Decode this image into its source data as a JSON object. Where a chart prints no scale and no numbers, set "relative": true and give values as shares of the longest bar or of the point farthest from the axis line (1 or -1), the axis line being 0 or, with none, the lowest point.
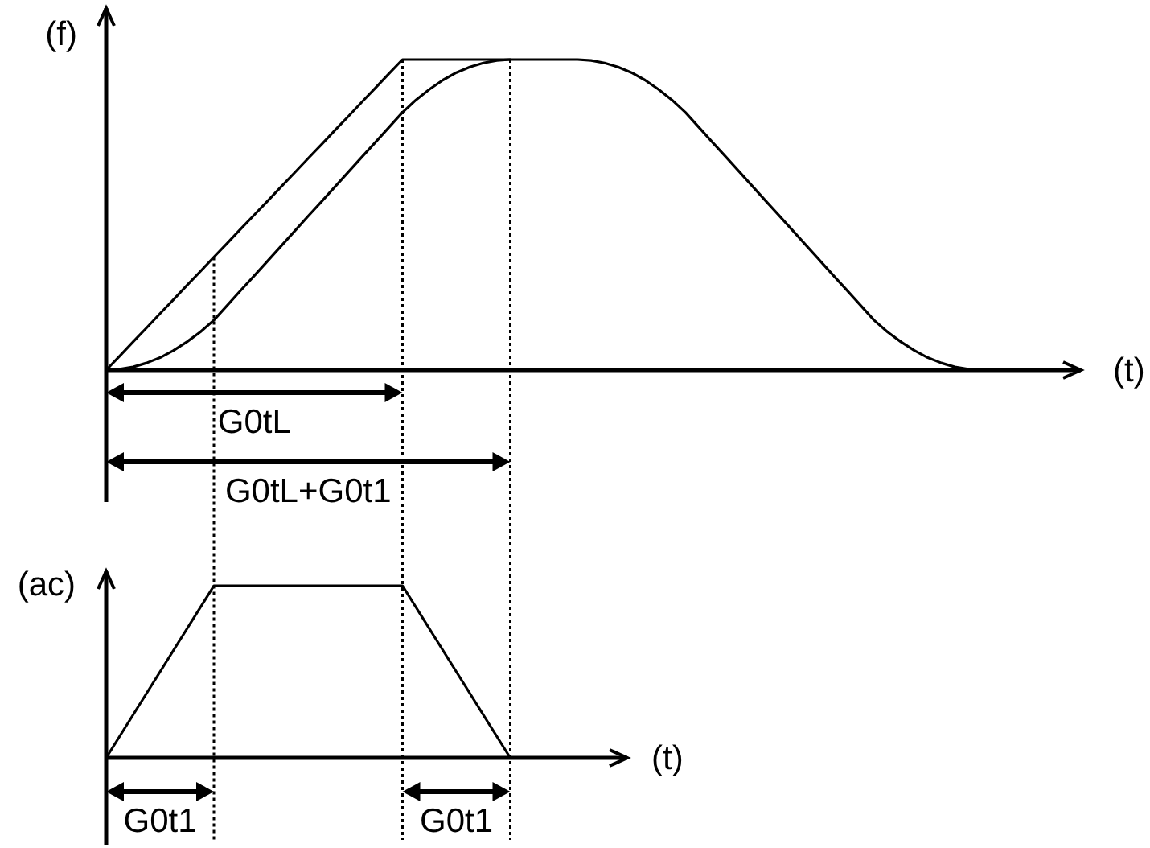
{
  "chart_data": [
    {
      "type": "line",
      "relative": true,
      "grid": "x",
      "ylabel": "(f)",
      "xlabel": "(t)",
      "annotations": [
        "G0tL",
        "G0tL+G0t1"
      ],
      "categories": [
        null,
        null,
        null,
        null,
        null,
        null,
        null,
        null,
        null,
        null,
        null,
        null,
        null,
        null,
        null,
        null,
        null,
        null,
        null,
        null,
        null,
        null,
        null,
        null,
        null,
        null,
        null,
        null,
        null,
        null,
        null,
        null,
        null,
        null,
        null,
        null,
        null,
        null,
        null,
        null,
        null,
        null,
        null,
        null,
        null,
        null,
        null,
        null,
        null,
        null,
        null,
        null,
        null,
        null,
        null,
        null,
        null,
        null,
        null,
        null,
        null,
        null,
        null,
        null,
        null,
        null
      ],
      "series": [
        {
          "color": "#000000",
          "values": [
            0,
            0.045,
            0.091,
            0.136,
            0.182,
            0.227,
            0.273,
            0.318,
            0.364,
            0.409,
            0.455,
            0.5,
            0.545,
            0.591,
            0.636,
            0.682,
            0.727,
            0.773,
            0.818,
            0.864,
            0.909,
            0.955,
            1,
            1,
            1,
            1,
            1,
            1,
            1,
            1,
            1,
            null,
            null,
            null,
            null,
            null,
            null,
            null,
            null,
            null,
            null,
            null,
            null,
            null,
            null,
            null,
            null,
            null,
            null,
            null,
            null,
            null,
            null,
            null,
            null,
            null,
            null,
            null,
            null,
            null,
            null,
            null,
            null,
            null,
            null,
            null
          ]
        },
        {
          "color": "#000000",
          "values": [
            0,
            0.003,
            0.01,
            0.023,
            0.04,
            0.063,
            0.091,
            0.123,
            0.161,
            0.209,
            0.257,
            0.304,
            0.352,
            0.4,
            0.448,
            0.496,
            0.543,
            0.591,
            0.639,
            0.687,
            0.734,
            0.782,
            0.83,
            0.87,
            0.904,
            0.934,
            0.958,
            0.976,
            0.989,
            0.997,
            1,
            1,
            1,
            1,
            1,
            1,
            0.997,
            0.989,
            0.976,
            0.958,
            0.934,
            0.904,
            0.87,
            0.83,
            0.782,
            0.734,
            0.687,
            0.639,
            0.591,
            0.543,
            0.496,
            0.448,
            0.4,
            0.352,
            0.304,
            0.257,
            0.209,
            0.161,
            0.123,
            0.091,
            0.063,
            0.04,
            0.023,
            0.01,
            0.003,
            0
          ]
        }
      ]
    },
    {
      "type": "line",
      "relative": true,
      "ylabel": "(ac)",
      "xlabel": "(t)",
      "annotations": [
        "G0t1",
        "G0t1"
      ],
      "categories": [
        null,
        null,
        null,
        null,
        null,
        null,
        null,
        null,
        null,
        null,
        null,
        null,
        null,
        null,
        null,
        null,
        null,
        null,
        null,
        null,
        null,
        null,
        null,
        null,
        null,
        null,
        null,
        null,
        null,
        null,
        null
      ],
      "series": [
        {
          "color": "#000000",
          "values": [
            0,
            0.125,
            0.25,
            0.375,
            0.5,
            0.625,
            0.75,
            0.875,
            1,
            1,
            1,
            1,
            1,
            1,
            1,
            1,
            1,
            1,
            1,
            1,
            1,
            1,
            1,
            0.875,
            0.75,
            0.625,
            0.5,
            0.375,
            0.25,
            0.125,
            0
          ]
        }
      ]
    }
  ]
}
